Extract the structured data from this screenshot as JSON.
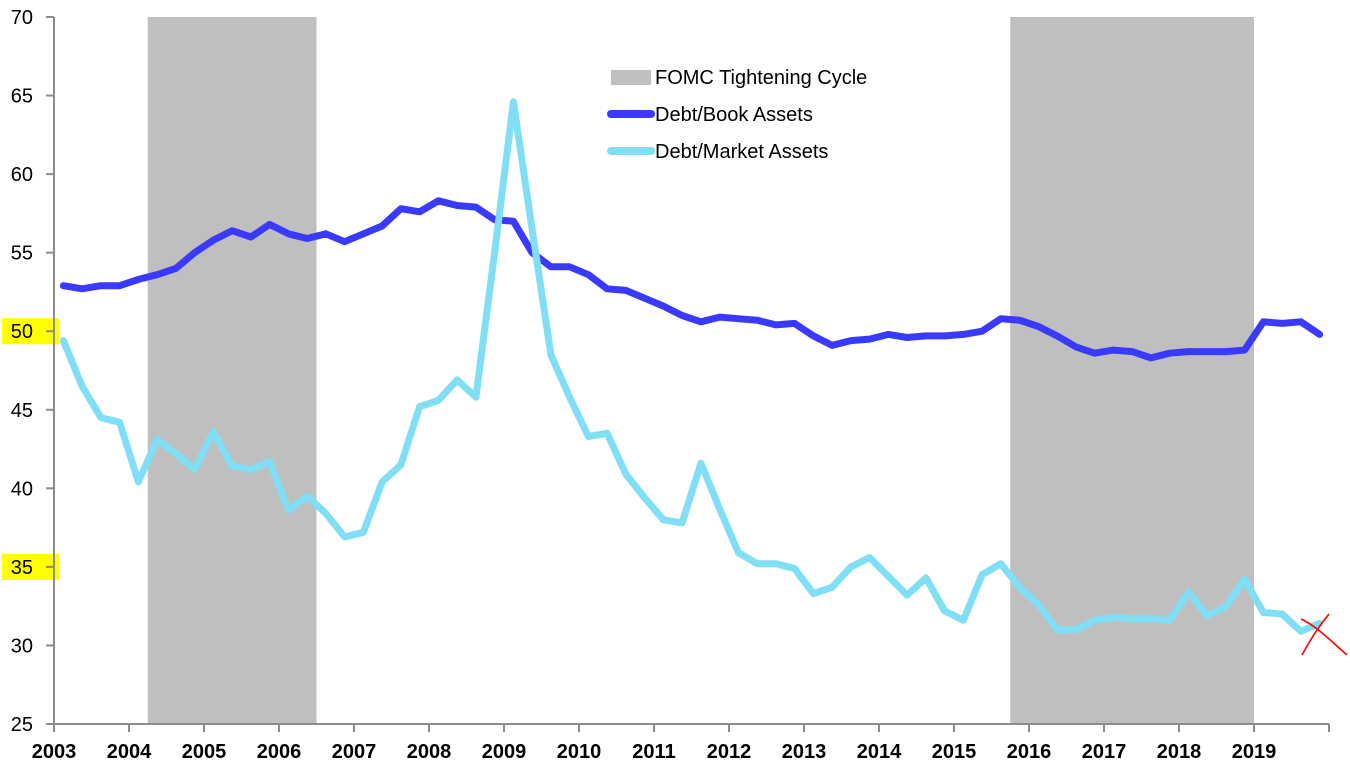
{
  "chart_data": {
    "type": "line",
    "title": "",
    "xlabel": "",
    "ylabel": "",
    "ylim": [
      25,
      70
    ],
    "xlim": [
      2003,
      2020
    ],
    "yticks": [
      "25",
      "30",
      "35",
      "40",
      "45",
      "50",
      "55",
      "60",
      "65",
      "70"
    ],
    "xticks": [
      "2003",
      "2004",
      "2005",
      "2006",
      "2007",
      "2008",
      "2009",
      "2010",
      "2011",
      "2012",
      "2013",
      "2014",
      "2015",
      "2016",
      "2017",
      "2018",
      "2019"
    ],
    "highlighted_yticks": [
      "35",
      "50"
    ],
    "highlight_color": "#ffff00",
    "grid": false,
    "legend_position": "top-center",
    "shaded_regions": {
      "name": "FOMC Tightening Cycle",
      "color": "#bfbfbf",
      "ranges": [
        [
          2004.25,
          2006.5
        ],
        [
          2015.75,
          2019.0
        ]
      ]
    },
    "x_start": 2003.0,
    "x_step": 0.25,
    "series": [
      {
        "name": "Debt/Book Assets",
        "color": "#3a3aff",
        "values": [
          52.9,
          52.7,
          52.9,
          52.9,
          53.3,
          53.6,
          54.0,
          55.0,
          55.8,
          56.4,
          56.0,
          56.8,
          56.2,
          55.9,
          56.2,
          55.7,
          56.2,
          56.7,
          57.8,
          57.6,
          58.3,
          58.0,
          57.9,
          57.1,
          57.0,
          55.0,
          54.1,
          54.1,
          53.6,
          52.7,
          52.6,
          52.1,
          51.6,
          51.0,
          50.6,
          50.9,
          50.8,
          50.7,
          50.4,
          50.5,
          49.7,
          49.1,
          49.4,
          49.5,
          49.8,
          49.6,
          49.7,
          49.7,
          49.8,
          50.0,
          50.8,
          50.7,
          50.3,
          49.7,
          49.0,
          48.6,
          48.8,
          48.7,
          48.3,
          48.6,
          48.7,
          48.7,
          48.7,
          48.8,
          50.6,
          50.5,
          50.6,
          49.8
        ]
      },
      {
        "name": "Debt/Market Assets",
        "color": "#80dff5",
        "values": [
          49.4,
          46.5,
          44.5,
          44.2,
          40.4,
          43.1,
          42.2,
          41.2,
          43.6,
          41.4,
          41.2,
          41.7,
          38.6,
          39.5,
          38.4,
          36.9,
          37.2,
          40.4,
          41.5,
          45.2,
          45.6,
          46.9,
          45.8,
          55.0,
          64.6,
          56.5,
          48.5,
          45.8,
          43.3,
          43.5,
          40.9,
          39.4,
          38.0,
          37.8,
          41.6,
          38.7,
          35.9,
          35.2,
          35.2,
          34.9,
          33.3,
          33.7,
          35.0,
          35.6,
          34.4,
          33.2,
          34.3,
          32.2,
          31.6,
          34.5,
          35.2,
          33.7,
          32.6,
          31.0,
          31.0,
          31.6,
          31.8,
          31.7,
          31.7,
          31.6,
          33.4,
          31.9,
          32.5,
          34.2,
          32.1,
          32.0,
          30.9,
          31.4
        ]
      }
    ],
    "annotation": {
      "type": "hand-drawn-x-mark",
      "color": "#ff0000",
      "near": "last Debt/Market Assets point (2019 Q4)"
    }
  }
}
